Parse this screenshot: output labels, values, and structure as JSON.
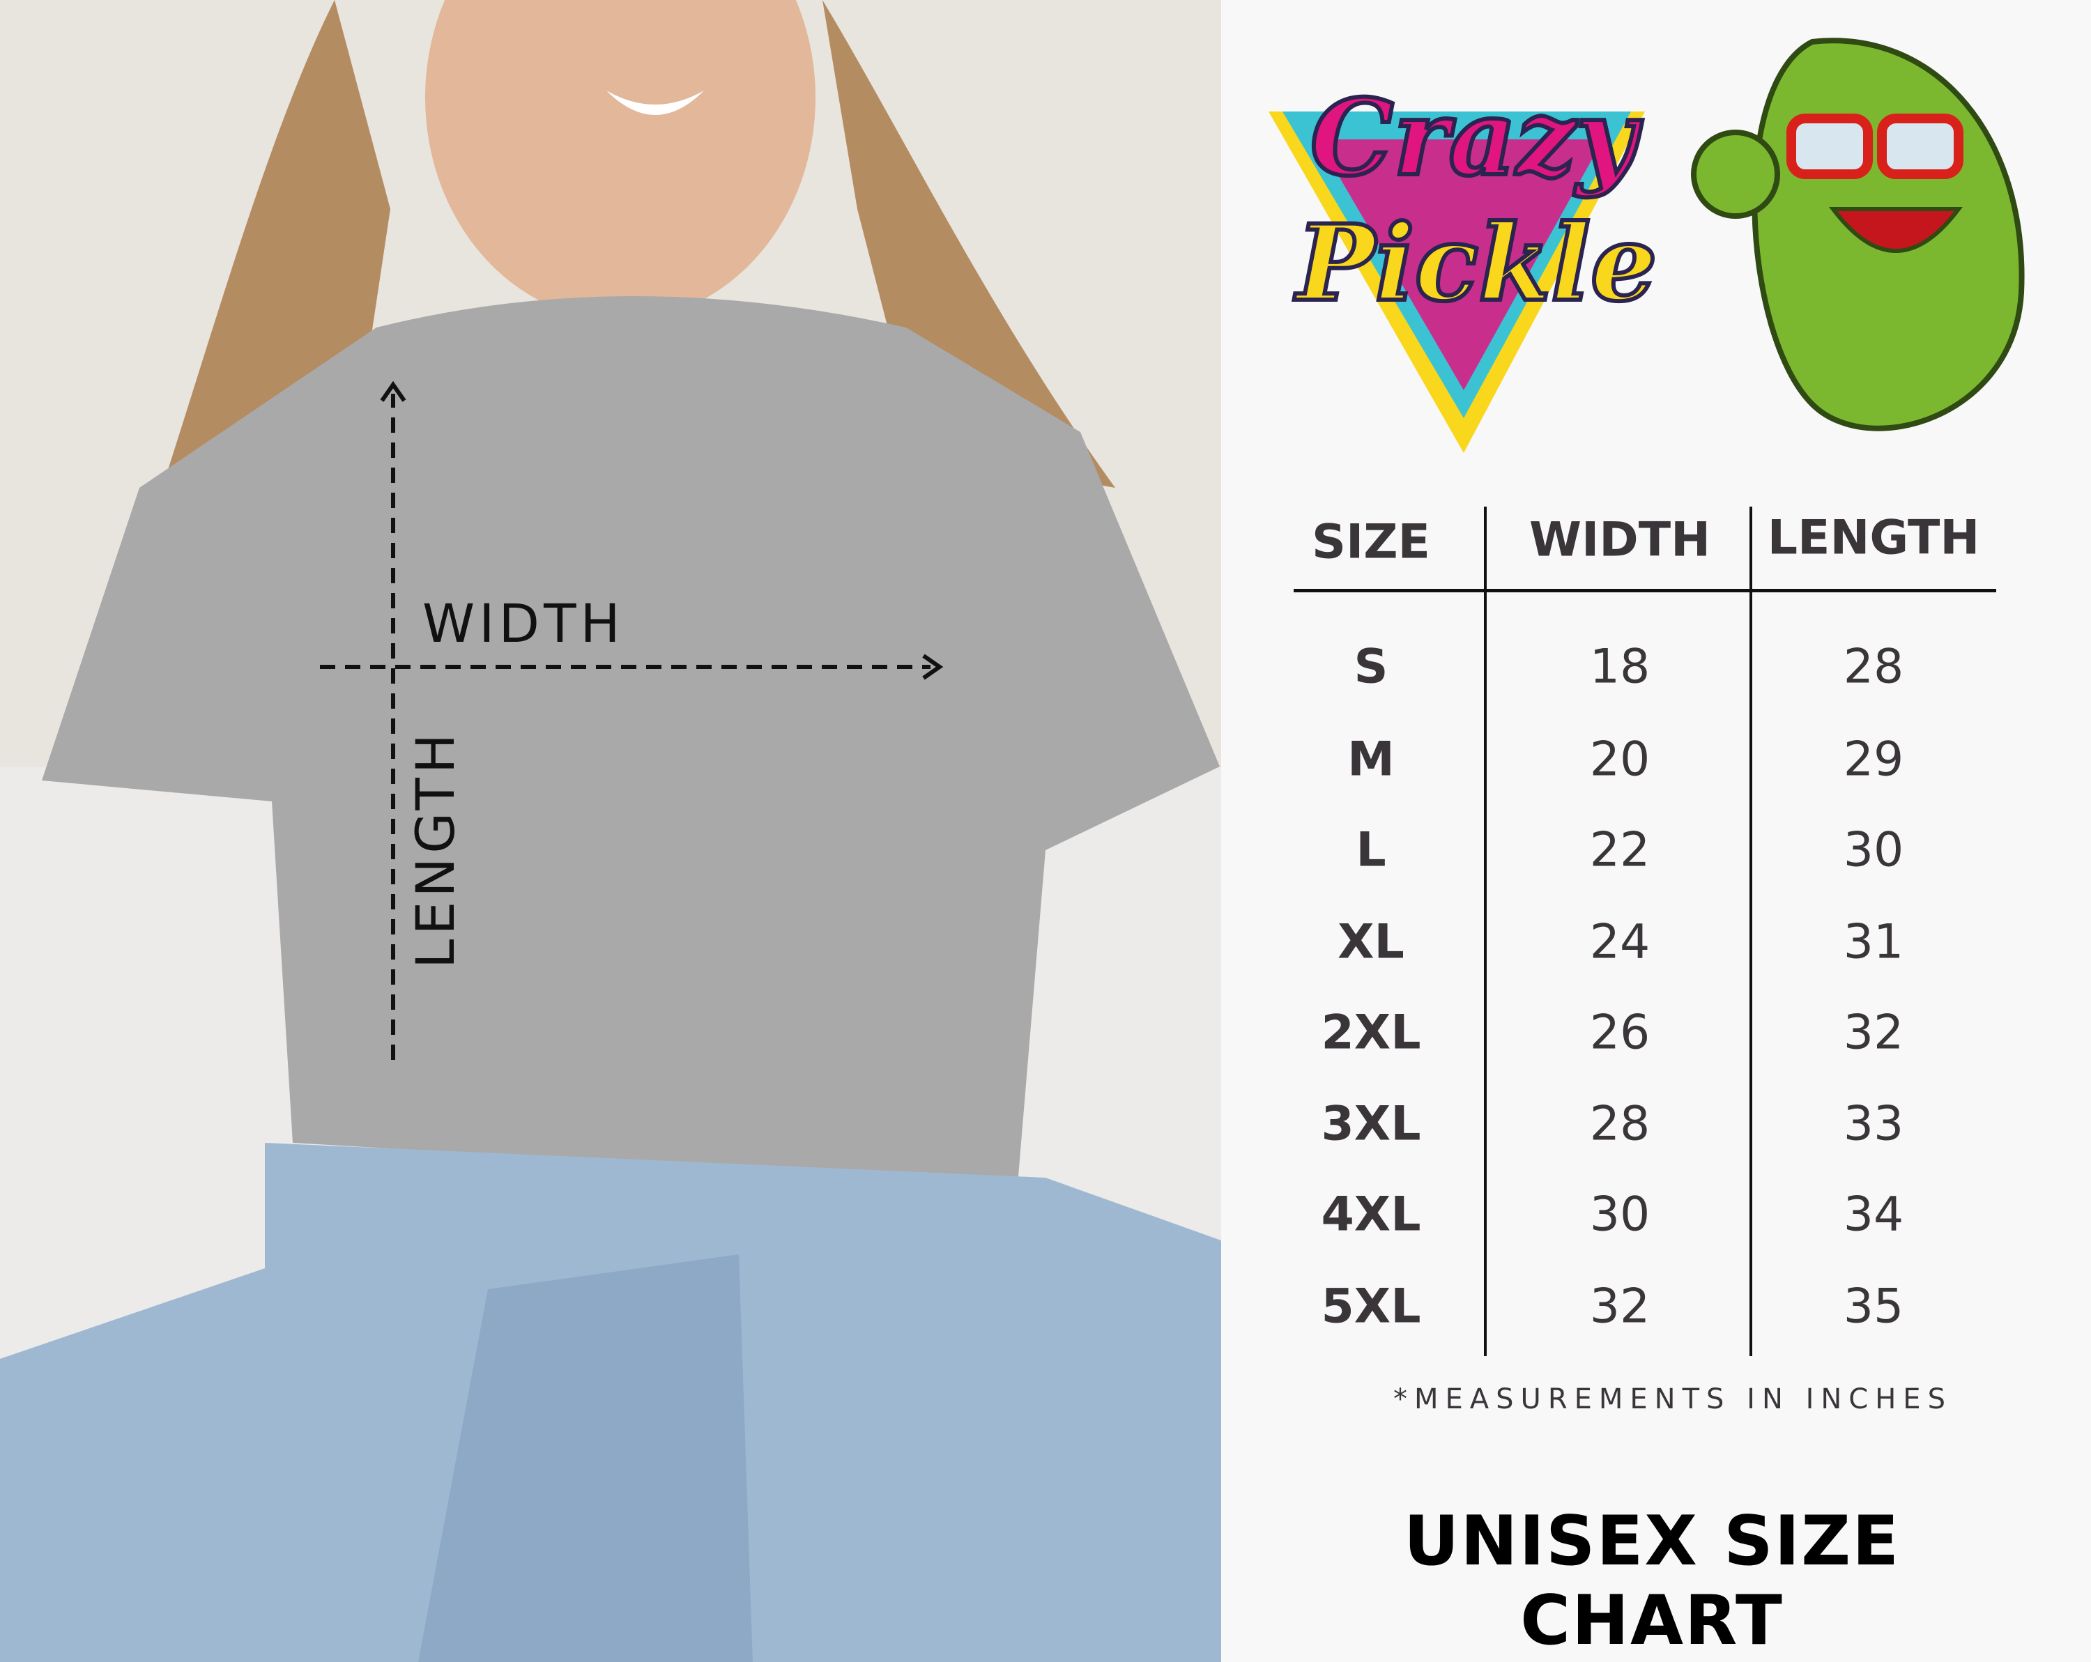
{
  "photo": {
    "width_label": "WIDTH",
    "length_label": "LENGTH"
  },
  "brand": {
    "logo_text": "Crazy Pickle",
    "colors": {
      "pink": "#e0157f",
      "yellow": "#f9d71c",
      "cyan": "#3cc3d3",
      "pickle": "#7cb82f"
    }
  },
  "table": {
    "headers": [
      "SIZE",
      "WIDTH",
      "LENGTH"
    ],
    "rows": [
      [
        "S",
        "18",
        "28"
      ],
      [
        "M",
        "20",
        "29"
      ],
      [
        "L",
        "22",
        "30"
      ],
      [
        "XL",
        "24",
        "31"
      ],
      [
        "2XL",
        "26",
        "32"
      ],
      [
        "3XL",
        "28",
        "33"
      ],
      [
        "4XL",
        "30",
        "34"
      ],
      [
        "5XL",
        "32",
        "35"
      ]
    ]
  },
  "note": "*MEASUREMENTS IN INCHES",
  "title": "UNISEX SIZE CHART"
}
